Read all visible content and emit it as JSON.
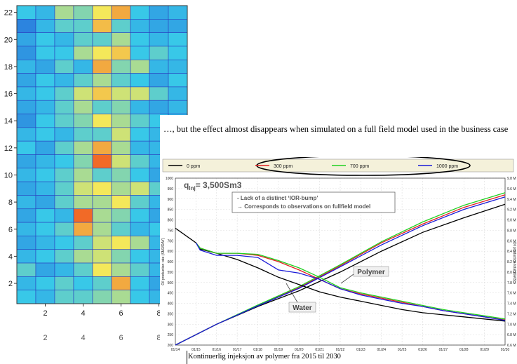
{
  "chart_data": [
    {
      "type": "heatmap",
      "x_ticks": [
        2,
        4,
        6,
        8
      ],
      "y_ticks": [
        2,
        4,
        6,
        8,
        10,
        12,
        14,
        16,
        18,
        20,
        22
      ],
      "extra_x_row": [
        "2",
        "4",
        "6",
        "8"
      ],
      "grid": {
        "columns": 9,
        "rows": 22,
        "x_range": [
          1,
          9
        ],
        "y_range": [
          1,
          22
        ],
        "values": [
          [
            0.4,
            0.35,
            0.55,
            0.5,
            0.65,
            0.75,
            0.4,
            0.3,
            0.35
          ],
          [
            0.2,
            0.35,
            0.45,
            0.45,
            0.72,
            0.45,
            0.35,
            0.3,
            0.3
          ],
          [
            0.3,
            0.4,
            0.35,
            0.45,
            0.45,
            0.55,
            0.4,
            0.35,
            0.4
          ],
          [
            0.25,
            0.4,
            0.4,
            0.55,
            0.65,
            0.7,
            0.4,
            0.45,
            0.4
          ],
          [
            0.35,
            0.3,
            0.45,
            0.35,
            0.75,
            0.5,
            0.55,
            0.35,
            0.35
          ],
          [
            0.3,
            0.4,
            0.35,
            0.45,
            0.55,
            0.45,
            0.4,
            0.3,
            0.4
          ],
          [
            0.35,
            0.4,
            0.45,
            0.6,
            0.7,
            0.6,
            0.6,
            0.45,
            0.35
          ],
          [
            0.3,
            0.35,
            0.45,
            0.55,
            0.45,
            0.5,
            0.35,
            0.3,
            0.35
          ],
          [
            0.25,
            0.4,
            0.45,
            0.5,
            0.65,
            0.55,
            0.45,
            0.4,
            0.35
          ],
          [
            0.35,
            0.4,
            0.35,
            0.45,
            0.45,
            0.6,
            0.4,
            0.35,
            0.4
          ],
          [
            0.4,
            0.3,
            0.45,
            0.55,
            0.75,
            0.55,
            0.35,
            0.35,
            0.4
          ],
          [
            0.3,
            0.35,
            0.4,
            0.5,
            0.85,
            0.6,
            0.45,
            0.35,
            0.35
          ],
          [
            0.35,
            0.4,
            0.45,
            0.55,
            0.45,
            0.5,
            0.4,
            0.3,
            0.4
          ],
          [
            0.3,
            0.35,
            0.45,
            0.6,
            0.65,
            0.55,
            0.6,
            0.45,
            0.35
          ],
          [
            0.35,
            0.3,
            0.45,
            0.55,
            0.55,
            0.65,
            0.45,
            0.35,
            0.3
          ],
          [
            0.3,
            0.4,
            0.35,
            0.85,
            0.55,
            0.5,
            0.4,
            0.3,
            0.35
          ],
          [
            0.35,
            0.4,
            0.45,
            0.75,
            0.55,
            0.45,
            0.35,
            0.4,
            0.35
          ],
          [
            0.3,
            0.35,
            0.4,
            0.45,
            0.6,
            0.65,
            0.55,
            0.35,
            0.3
          ],
          [
            0.35,
            0.4,
            0.45,
            0.55,
            0.6,
            0.5,
            0.4,
            0.35,
            0.4
          ],
          [
            0.45,
            0.3,
            0.35,
            0.45,
            0.65,
            0.55,
            0.45,
            0.35,
            0.3
          ],
          [
            0.35,
            0.4,
            0.45,
            0.4,
            0.45,
            0.75,
            0.4,
            0.3,
            0.35
          ],
          [
            0.4,
            0.35,
            0.45,
            0.45,
            0.5,
            0.55,
            0.4,
            0.35,
            0.3
          ]
        ]
      },
      "colors": {
        "low": "#1f3fd6",
        "mid": "#38c8e8",
        "high_mid": "#f4e85a",
        "high": "#f04a1a"
      }
    },
    {
      "type": "line",
      "annotation_box": [
        "- Lack of a distinct ‘IOR-bump’",
        "→ Corresponds to observations on fullfield model"
      ],
      "injection_label": "q",
      "injection_subscript": "Inj",
      "injection_value": "= 3,500Sm3",
      "labels": {
        "polymer": "Polymer",
        "water": "Water"
      },
      "ylabel": "Oil production rate (SM3/DAY)",
      "ylabel_right": "Oil production total (SM3)",
      "ylim": [
        200,
        1000
      ],
      "y_ticks": [
        200,
        250,
        300,
        350,
        400,
        450,
        500,
        550,
        600,
        650,
        700,
        750,
        800,
        850,
        900,
        950,
        1000
      ],
      "y_right_ticks": [
        "6.6 M",
        "6.8 M",
        "7.0 M",
        "7.2 M",
        "7.4 M",
        "7.6 M",
        "7.8 M",
        "8.0 M",
        "8.2 M",
        "8.4 M",
        "8.6 M",
        "8.8 M",
        "9.0 M",
        "9.2 M",
        "9.4 M",
        "9.6 M",
        "9.8 M"
      ],
      "x_ticks": [
        "01/14",
        "01/15",
        "01/16",
        "01/17",
        "01/18",
        "01/19",
        "01/20",
        "01/21",
        "01/22",
        "01/23",
        "01/24",
        "01/25",
        "01/26",
        "01/27",
        "01/28",
        "01/29",
        "01/30"
      ],
      "xlim": [
        0,
        16
      ],
      "legend": [
        {
          "name": "0 ppm",
          "color": "#000000"
        },
        {
          "name": "300 ppm",
          "color": "#e02020"
        },
        {
          "name": "700 ppm",
          "color": "#20d020"
        },
        {
          "name": "1000 ppm",
          "color": "#1a1ad8"
        }
      ],
      "rate_series": [
        {
          "name": "0 ppm",
          "color": "#000000",
          "x": [
            0,
            1,
            1.2,
            2,
            3,
            4,
            5,
            6,
            7,
            8,
            9,
            10,
            11,
            12,
            13,
            14,
            15,
            16
          ],
          "y": [
            760,
            690,
            660,
            640,
            610,
            570,
            525,
            490,
            455,
            430,
            410,
            390,
            370,
            355,
            345,
            335,
            325,
            315
          ]
        },
        {
          "name": "300 ppm",
          "color": "#e02020",
          "x": [
            1,
            1.2,
            2,
            3,
            4,
            5,
            6,
            7,
            8,
            9,
            10,
            11,
            12,
            13,
            14,
            15,
            16
          ],
          "y": [
            690,
            665,
            640,
            640,
            630,
            600,
            560,
            515,
            470,
            445,
            425,
            405,
            385,
            365,
            350,
            335,
            320
          ]
        },
        {
          "name": "700 ppm",
          "color": "#20d020",
          "x": [
            1,
            1.2,
            2,
            3,
            4,
            5,
            6,
            7,
            8,
            9,
            10,
            11,
            12,
            13,
            14,
            15,
            16
          ],
          "y": [
            690,
            665,
            640,
            640,
            635,
            605,
            570,
            525,
            475,
            450,
            430,
            410,
            390,
            370,
            355,
            340,
            325
          ]
        },
        {
          "name": "1000 ppm",
          "color": "#1a1ad8",
          "x": [
            1,
            1.2,
            2,
            3,
            4,
            5,
            6,
            7,
            8,
            9,
            10,
            11,
            12,
            13,
            14,
            15,
            16
          ],
          "y": [
            690,
            655,
            630,
            630,
            620,
            560,
            545,
            515,
            470,
            440,
            420,
            400,
            385,
            365,
            350,
            335,
            318
          ]
        }
      ],
      "total_series": [
        {
          "name": "0 ppm",
          "color": "#000000",
          "x": [
            0,
            2,
            4,
            6,
            8,
            10,
            12,
            14,
            16
          ],
          "y": [
            200,
            300,
            385,
            460,
            550,
            650,
            740,
            810,
            875
          ]
        },
        {
          "name": "300 ppm",
          "color": "#e02020",
          "x": [
            0,
            2,
            4,
            6,
            8,
            10,
            12,
            14,
            16
          ],
          "y": [
            200,
            300,
            390,
            475,
            580,
            690,
            780,
            860,
            920
          ]
        },
        {
          "name": "700 ppm",
          "color": "#20d020",
          "x": [
            0,
            2,
            4,
            6,
            8,
            10,
            12,
            14,
            16
          ],
          "y": [
            200,
            300,
            392,
            480,
            585,
            695,
            790,
            870,
            930
          ]
        },
        {
          "name": "1000 ppm",
          "color": "#1a1ad8",
          "x": [
            0,
            2,
            4,
            6,
            8,
            10,
            12,
            14,
            16
          ],
          "y": [
            200,
            300,
            388,
            472,
            575,
            680,
            772,
            850,
            910
          ]
        }
      ]
    }
  ],
  "caption": "…, but the effect almost disappears when simulated on a full field model used in the business case",
  "footer": "Kontinuerlig injeksjon av polymer fra 2015 til 2030"
}
